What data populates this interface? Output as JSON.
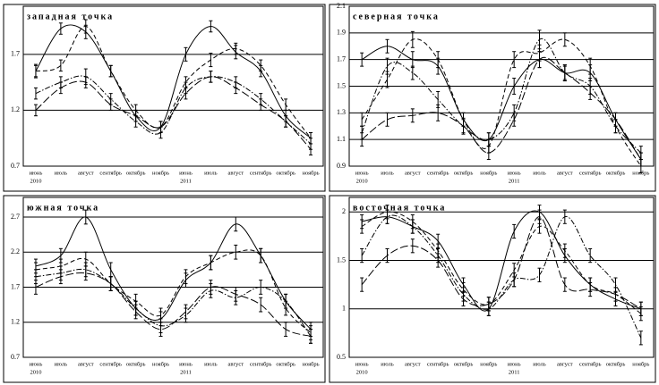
{
  "chart_data": [
    {
      "type": "line",
      "title": "западная точка",
      "categories": [
        "июнь",
        "июль",
        "август",
        "сентябрь",
        "октябрь",
        "ноябрь",
        "июнь",
        "июль",
        "август",
        "сентябрь",
        "октябрь",
        "ноябрь"
      ],
      "years": [
        "2010",
        null,
        null,
        null,
        null,
        null,
        "2011",
        null,
        null,
        null,
        null,
        null
      ],
      "ylim": [
        0.7,
        2.13
      ],
      "yticks": [
        0.7,
        1.2,
        1.7
      ],
      "grid": true,
      "series": [
        {
          "color": "#000000",
          "dash": "solid",
          "values": [
            1.55,
            1.93,
            1.9,
            1.55,
            1.15,
            1.05,
            1.7,
            1.95,
            1.72,
            1.55,
            1.15,
            0.95
          ],
          "errors": [
            0.06,
            0.05,
            0.06,
            0.05,
            0.05,
            0.05,
            0.06,
            0.05,
            0.06,
            0.05,
            0.05,
            0.05
          ]
        },
        {
          "color": "#000000",
          "dash": "dashed",
          "values": [
            1.55,
            1.6,
            1.95,
            1.55,
            1.2,
            1.05,
            1.45,
            1.65,
            1.75,
            1.6,
            1.25,
            0.95
          ],
          "errors": [
            0.05,
            0.05,
            0.06,
            0.05,
            0.05,
            0.05,
            0.05,
            0.06,
            0.05,
            0.05,
            0.05,
            0.05
          ]
        },
        {
          "color": "#000000",
          "dash": "dashdot",
          "values": [
            1.35,
            1.45,
            1.5,
            1.3,
            1.1,
            1.0,
            1.4,
            1.5,
            1.45,
            1.3,
            1.1,
            0.9
          ],
          "errors": [
            0.05,
            0.05,
            0.07,
            0.05,
            0.05,
            0.05,
            0.05,
            0.05,
            0.05,
            0.05,
            0.05,
            0.05
          ]
        },
        {
          "color": "#000000",
          "dash": "longdash",
          "values": [
            1.2,
            1.4,
            1.45,
            1.25,
            1.15,
            1.05,
            1.35,
            1.5,
            1.4,
            1.25,
            1.1,
            0.85
          ],
          "errors": [
            0.05,
            0.05,
            0.05,
            0.05,
            0.05,
            0.05,
            0.05,
            0.05,
            0.05,
            0.05,
            0.05,
            0.05
          ]
        }
      ]
    },
    {
      "type": "line",
      "title": "северная точка",
      "categories": [
        "июнь",
        "июль",
        "август",
        "сентябрь",
        "октябрь",
        "ноябрь",
        "июнь",
        "июль",
        "август",
        "сентябрь",
        "октябрь",
        "ноябрь"
      ],
      "years": [
        "2010",
        null,
        null,
        null,
        null,
        null,
        "2011",
        null,
        null,
        null,
        null,
        null
      ],
      "ylim": [
        0.9,
        2.1
      ],
      "yticks": [
        0.9,
        1.1,
        1.3,
        1.5,
        1.7,
        1.9,
        2.1
      ],
      "grid": true,
      "series": [
        {
          "color": "#000000",
          "dash": "solid",
          "values": [
            1.7,
            1.8,
            1.7,
            1.65,
            1.25,
            1.1,
            1.5,
            1.7,
            1.6,
            1.6,
            1.25,
            0.95
          ],
          "errors": [
            0.05,
            0.05,
            0.06,
            0.06,
            0.05,
            0.05,
            0.06,
            0.06,
            0.06,
            0.06,
            0.05,
            0.05
          ]
        },
        {
          "color": "#000000",
          "dash": "dashed",
          "values": [
            1.25,
            1.55,
            1.85,
            1.7,
            1.25,
            1.05,
            1.7,
            1.75,
            1.85,
            1.65,
            1.2,
            0.9
          ],
          "errors": [
            0.05,
            0.06,
            0.06,
            0.06,
            0.05,
            0.05,
            0.06,
            0.06,
            0.05,
            0.06,
            0.05,
            0.05
          ]
        },
        {
          "color": "#000000",
          "dash": "dashdot",
          "values": [
            1.15,
            1.65,
            1.6,
            1.4,
            1.2,
            1.1,
            1.3,
            1.85,
            1.6,
            1.5,
            1.2,
            1.0
          ],
          "errors": [
            0.05,
            0.06,
            0.05,
            0.06,
            0.05,
            0.05,
            0.06,
            0.07,
            0.05,
            0.06,
            0.05,
            0.05
          ]
        },
        {
          "color": "#000000",
          "dash": "longdash",
          "values": [
            1.1,
            1.25,
            1.28,
            1.3,
            1.2,
            1.0,
            1.25,
            1.7,
            1.6,
            1.45,
            1.25,
            0.95
          ],
          "errors": [
            0.05,
            0.05,
            0.05,
            0.06,
            0.06,
            0.05,
            0.05,
            0.06,
            0.06,
            0.05,
            0.05,
            0.05
          ]
        }
      ]
    },
    {
      "type": "line",
      "title": "южная точка",
      "categories": [
        "июнь",
        "июль",
        "август",
        "сентябрь",
        "октябрь",
        "ноябрь",
        "июнь",
        "июль",
        "август",
        "сентябрь",
        "октябрь",
        "ноябрь"
      ],
      "years": [
        "2010",
        null,
        null,
        null,
        null,
        null,
        "2011",
        null,
        null,
        null,
        null,
        null
      ],
      "ylim": [
        0.7,
        2.98
      ],
      "yticks": [
        0.7,
        1.2,
        1.7,
        2.2,
        2.7
      ],
      "grid": true,
      "series": [
        {
          "color": "#000000",
          "dash": "solid",
          "values": [
            2.0,
            2.15,
            2.7,
            1.95,
            1.4,
            1.25,
            1.8,
            2.05,
            2.6,
            2.15,
            1.5,
            1.1
          ],
          "errors": [
            0.1,
            0.1,
            0.1,
            0.1,
            0.1,
            0.1,
            0.1,
            0.1,
            0.1,
            0.1,
            0.1,
            0.1
          ]
        },
        {
          "color": "#000000",
          "dash": "dashed",
          "values": [
            1.95,
            2.0,
            2.1,
            1.75,
            1.5,
            1.3,
            1.85,
            2.05,
            2.2,
            2.15,
            1.4,
            1.05
          ],
          "errors": [
            0.1,
            0.1,
            0.1,
            0.1,
            0.1,
            0.1,
            0.1,
            0.1,
            0.1,
            0.1,
            0.1,
            0.1
          ]
        },
        {
          "color": "#000000",
          "dash": "dashdot",
          "values": [
            1.85,
            1.9,
            1.95,
            1.75,
            1.4,
            1.15,
            1.3,
            1.65,
            1.55,
            1.7,
            1.5,
            1.0
          ],
          "errors": [
            0.1,
            0.1,
            0.1,
            0.1,
            0.1,
            0.1,
            0.1,
            0.1,
            0.1,
            0.1,
            0.1,
            0.1
          ]
        },
        {
          "color": "#000000",
          "dash": "longdash",
          "values": [
            1.7,
            1.85,
            1.9,
            1.75,
            1.35,
            1.1,
            1.35,
            1.7,
            1.6,
            1.45,
            1.1,
            1.0
          ],
          "errors": [
            0.1,
            0.1,
            0.1,
            0.1,
            0.1,
            0.1,
            0.1,
            0.1,
            0.1,
            0.1,
            0.1,
            0.1
          ]
        }
      ]
    },
    {
      "type": "line",
      "title": "восточная точка",
      "categories": [
        "июнь",
        "июль",
        "август",
        "сентябрь",
        "октябрь",
        "ноябрь",
        "июнь",
        "июль",
        "август",
        "сентябрь",
        "октябрь",
        "ноябрь"
      ],
      "years": [
        "2010",
        null,
        null,
        null,
        null,
        null,
        "2011",
        null,
        null,
        null,
        null,
        null
      ],
      "ylim": [
        0.5,
        2.15
      ],
      "yticks": [
        0.5,
        1,
        1.5,
        2
      ],
      "grid": true,
      "series": [
        {
          "color": "#000000",
          "dash": "solid",
          "values": [
            1.9,
            1.95,
            1.85,
            1.7,
            1.25,
            1.0,
            1.8,
            2.0,
            1.55,
            1.25,
            1.1,
            1.0
          ],
          "errors": [
            0.07,
            0.07,
            0.07,
            0.07,
            0.07,
            0.07,
            0.07,
            0.07,
            0.07,
            0.07,
            0.07,
            0.07
          ]
        },
        {
          "color": "#000000",
          "dash": "dashed",
          "values": [
            1.85,
            2.0,
            1.9,
            1.6,
            1.2,
            1.05,
            1.4,
            1.85,
            1.6,
            1.25,
            1.15,
            0.95
          ],
          "errors": [
            0.07,
            0.07,
            0.07,
            0.07,
            0.07,
            0.07,
            0.07,
            0.07,
            0.07,
            0.07,
            0.07,
            0.07
          ]
        },
        {
          "color": "#000000",
          "dash": "dashdot",
          "values": [
            1.55,
            1.95,
            1.85,
            1.55,
            1.15,
            1.0,
            1.3,
            1.35,
            1.95,
            1.55,
            1.25,
            0.7
          ],
          "errors": [
            0.07,
            0.07,
            0.07,
            0.07,
            0.07,
            0.07,
            0.07,
            0.07,
            0.07,
            0.07,
            0.07,
            0.07
          ]
        },
        {
          "color": "#000000",
          "dash": "longdash",
          "values": [
            1.25,
            1.55,
            1.65,
            1.5,
            1.1,
            1.05,
            1.3,
            1.95,
            1.25,
            1.2,
            1.15,
            1.0
          ],
          "errors": [
            0.07,
            0.07,
            0.07,
            0.07,
            0.07,
            0.07,
            0.07,
            0.07,
            0.07,
            0.07,
            0.07,
            0.07
          ]
        }
      ]
    }
  ]
}
